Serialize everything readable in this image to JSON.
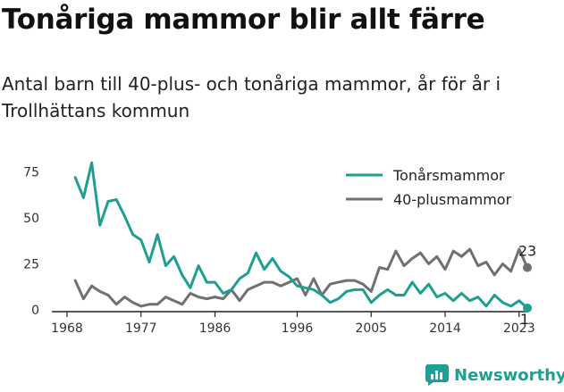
{
  "title": "Tonåriga mammor blir allt färre",
  "subtitle": "Antal barn till 40-plus- och tonåriga mammor, år för år i Trollhättans kommun",
  "brand": "Newsworthy",
  "colors": {
    "teen": "#1f9e92",
    "forty": "#707070",
    "axis": "#222222"
  },
  "chart_data": {
    "type": "line",
    "x": [
      1969,
      1970,
      1971,
      1972,
      1973,
      1974,
      1975,
      1976,
      1977,
      1978,
      1979,
      1980,
      1981,
      1982,
      1983,
      1984,
      1985,
      1986,
      1987,
      1988,
      1989,
      1990,
      1991,
      1992,
      1993,
      1994,
      1995,
      1996,
      1997,
      1998,
      1999,
      2000,
      2001,
      2002,
      2003,
      2004,
      2005,
      2006,
      2007,
      2008,
      2009,
      2010,
      2011,
      2012,
      2013,
      2014,
      2015,
      2016,
      2017,
      2018,
      2019,
      2020,
      2021,
      2022,
      2023,
      2024
    ],
    "series": [
      {
        "name": "Tonårsmammor",
        "values": [
          72,
          61,
          80,
          46,
          59,
          60,
          51,
          41,
          38,
          26,
          41,
          24,
          29,
          19,
          12,
          24,
          15,
          15,
          9,
          11,
          17,
          20,
          31,
          22,
          28,
          21,
          18,
          13,
          12,
          11,
          8,
          4,
          6,
          10,
          11,
          11,
          4,
          8,
          11,
          8,
          8,
          15,
          9,
          14,
          7,
          9,
          5,
          9,
          5,
          7,
          2,
          8,
          4,
          2,
          5,
          1
        ]
      },
      {
        "name": "40-plusmammor",
        "values": [
          16,
          6,
          13,
          10,
          8,
          3,
          7,
          4,
          2,
          3,
          3,
          7,
          5,
          3,
          9,
          7,
          6,
          7,
          6,
          11,
          5,
          11,
          13,
          15,
          15,
          13,
          15,
          17,
          8,
          17,
          8,
          14,
          15,
          16,
          16,
          14,
          10,
          23,
          22,
          32,
          24,
          28,
          31,
          25,
          29,
          22,
          32,
          29,
          33,
          24,
          26,
          19,
          25,
          21,
          33,
          23
        ]
      }
    ],
    "xticks": [
      "1968",
      "1977",
      "1986",
      "1996",
      "2005",
      "2014",
      "2023"
    ],
    "yticks": [
      "0",
      "25",
      "50",
      "75"
    ],
    "ylim": [
      0,
      85
    ],
    "xlim": [
      1968,
      2024
    ],
    "end_labels": [
      "23",
      "1"
    ],
    "legend_position": "top-right",
    "grid": false
  }
}
